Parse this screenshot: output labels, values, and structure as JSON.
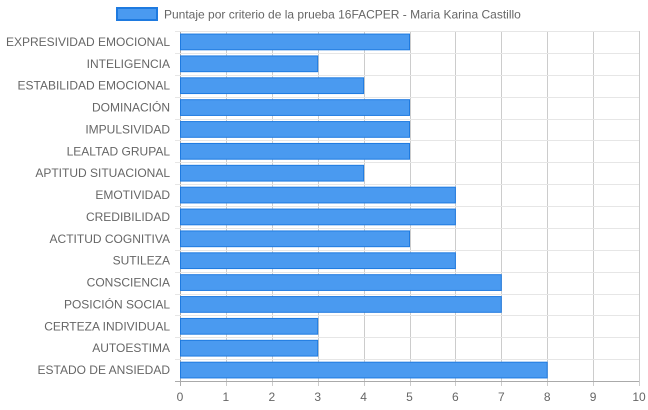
{
  "chart_data": {
    "type": "bar",
    "orientation": "horizontal",
    "legend_position": "top",
    "grid": true,
    "categories": [
      "EXPRESIVIDAD EMOCIONAL",
      "INTELIGENCIA",
      "ESTABILIDAD EMOCIONAL",
      "DOMINACIÓN",
      "IMPULSIVIDAD",
      "LEALTAD GRUPAL",
      "APTITUD SITUACIONAL",
      "EMOTIVIDAD",
      "CREDIBILIDAD",
      "ACTITUD COGNITIVA",
      "SUTILEZA",
      "CONSCIENCIA",
      "POSICIÓN SOCIAL",
      "CERTEZA INDIVIDUAL",
      "AUTOESTIMA",
      "ESTADO DE ANSIEDAD"
    ],
    "series": [
      {
        "name": "Puntaje por criterio de la prueba 16FACPER - Maria Karina Castillo",
        "color": "#4a9af0",
        "border_color": "#1e7ae0",
        "values": [
          5,
          3,
          4,
          5,
          5,
          5,
          4,
          6,
          6,
          5,
          6,
          7,
          7,
          3,
          3,
          8
        ]
      }
    ],
    "xlim": [
      0,
      10
    ],
    "xticks": [
      "0",
      "1",
      "2",
      "3",
      "4",
      "5",
      "6",
      "7",
      "8",
      "9",
      "10"
    ]
  }
}
